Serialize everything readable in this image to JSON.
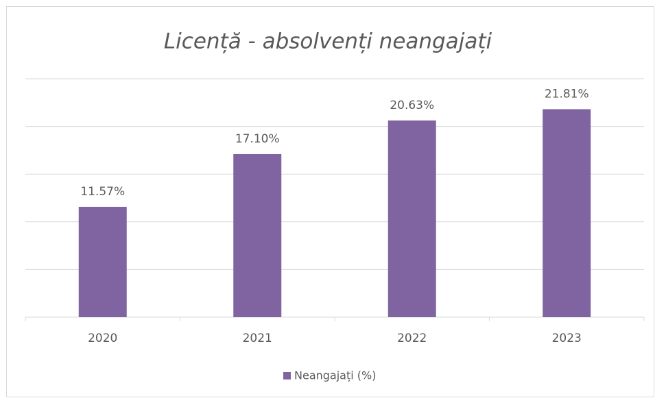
{
  "chart_data": {
    "type": "bar",
    "title": "Licență - absolvenți neangajați",
    "categories": [
      "2020",
      "2021",
      "2022",
      "2023"
    ],
    "series": [
      {
        "name": "Neangajați (%)",
        "color": "#8064a2",
        "values": [
          11.57,
          17.1,
          20.63,
          21.81
        ],
        "value_labels": [
          "11.57%",
          "17.10%",
          "20.63%",
          "21.81%"
        ]
      }
    ],
    "ylim": [
      0,
      25
    ],
    "yticks": [
      0,
      5,
      10,
      15,
      20,
      25
    ],
    "grid": true,
    "legend": "bottom"
  }
}
